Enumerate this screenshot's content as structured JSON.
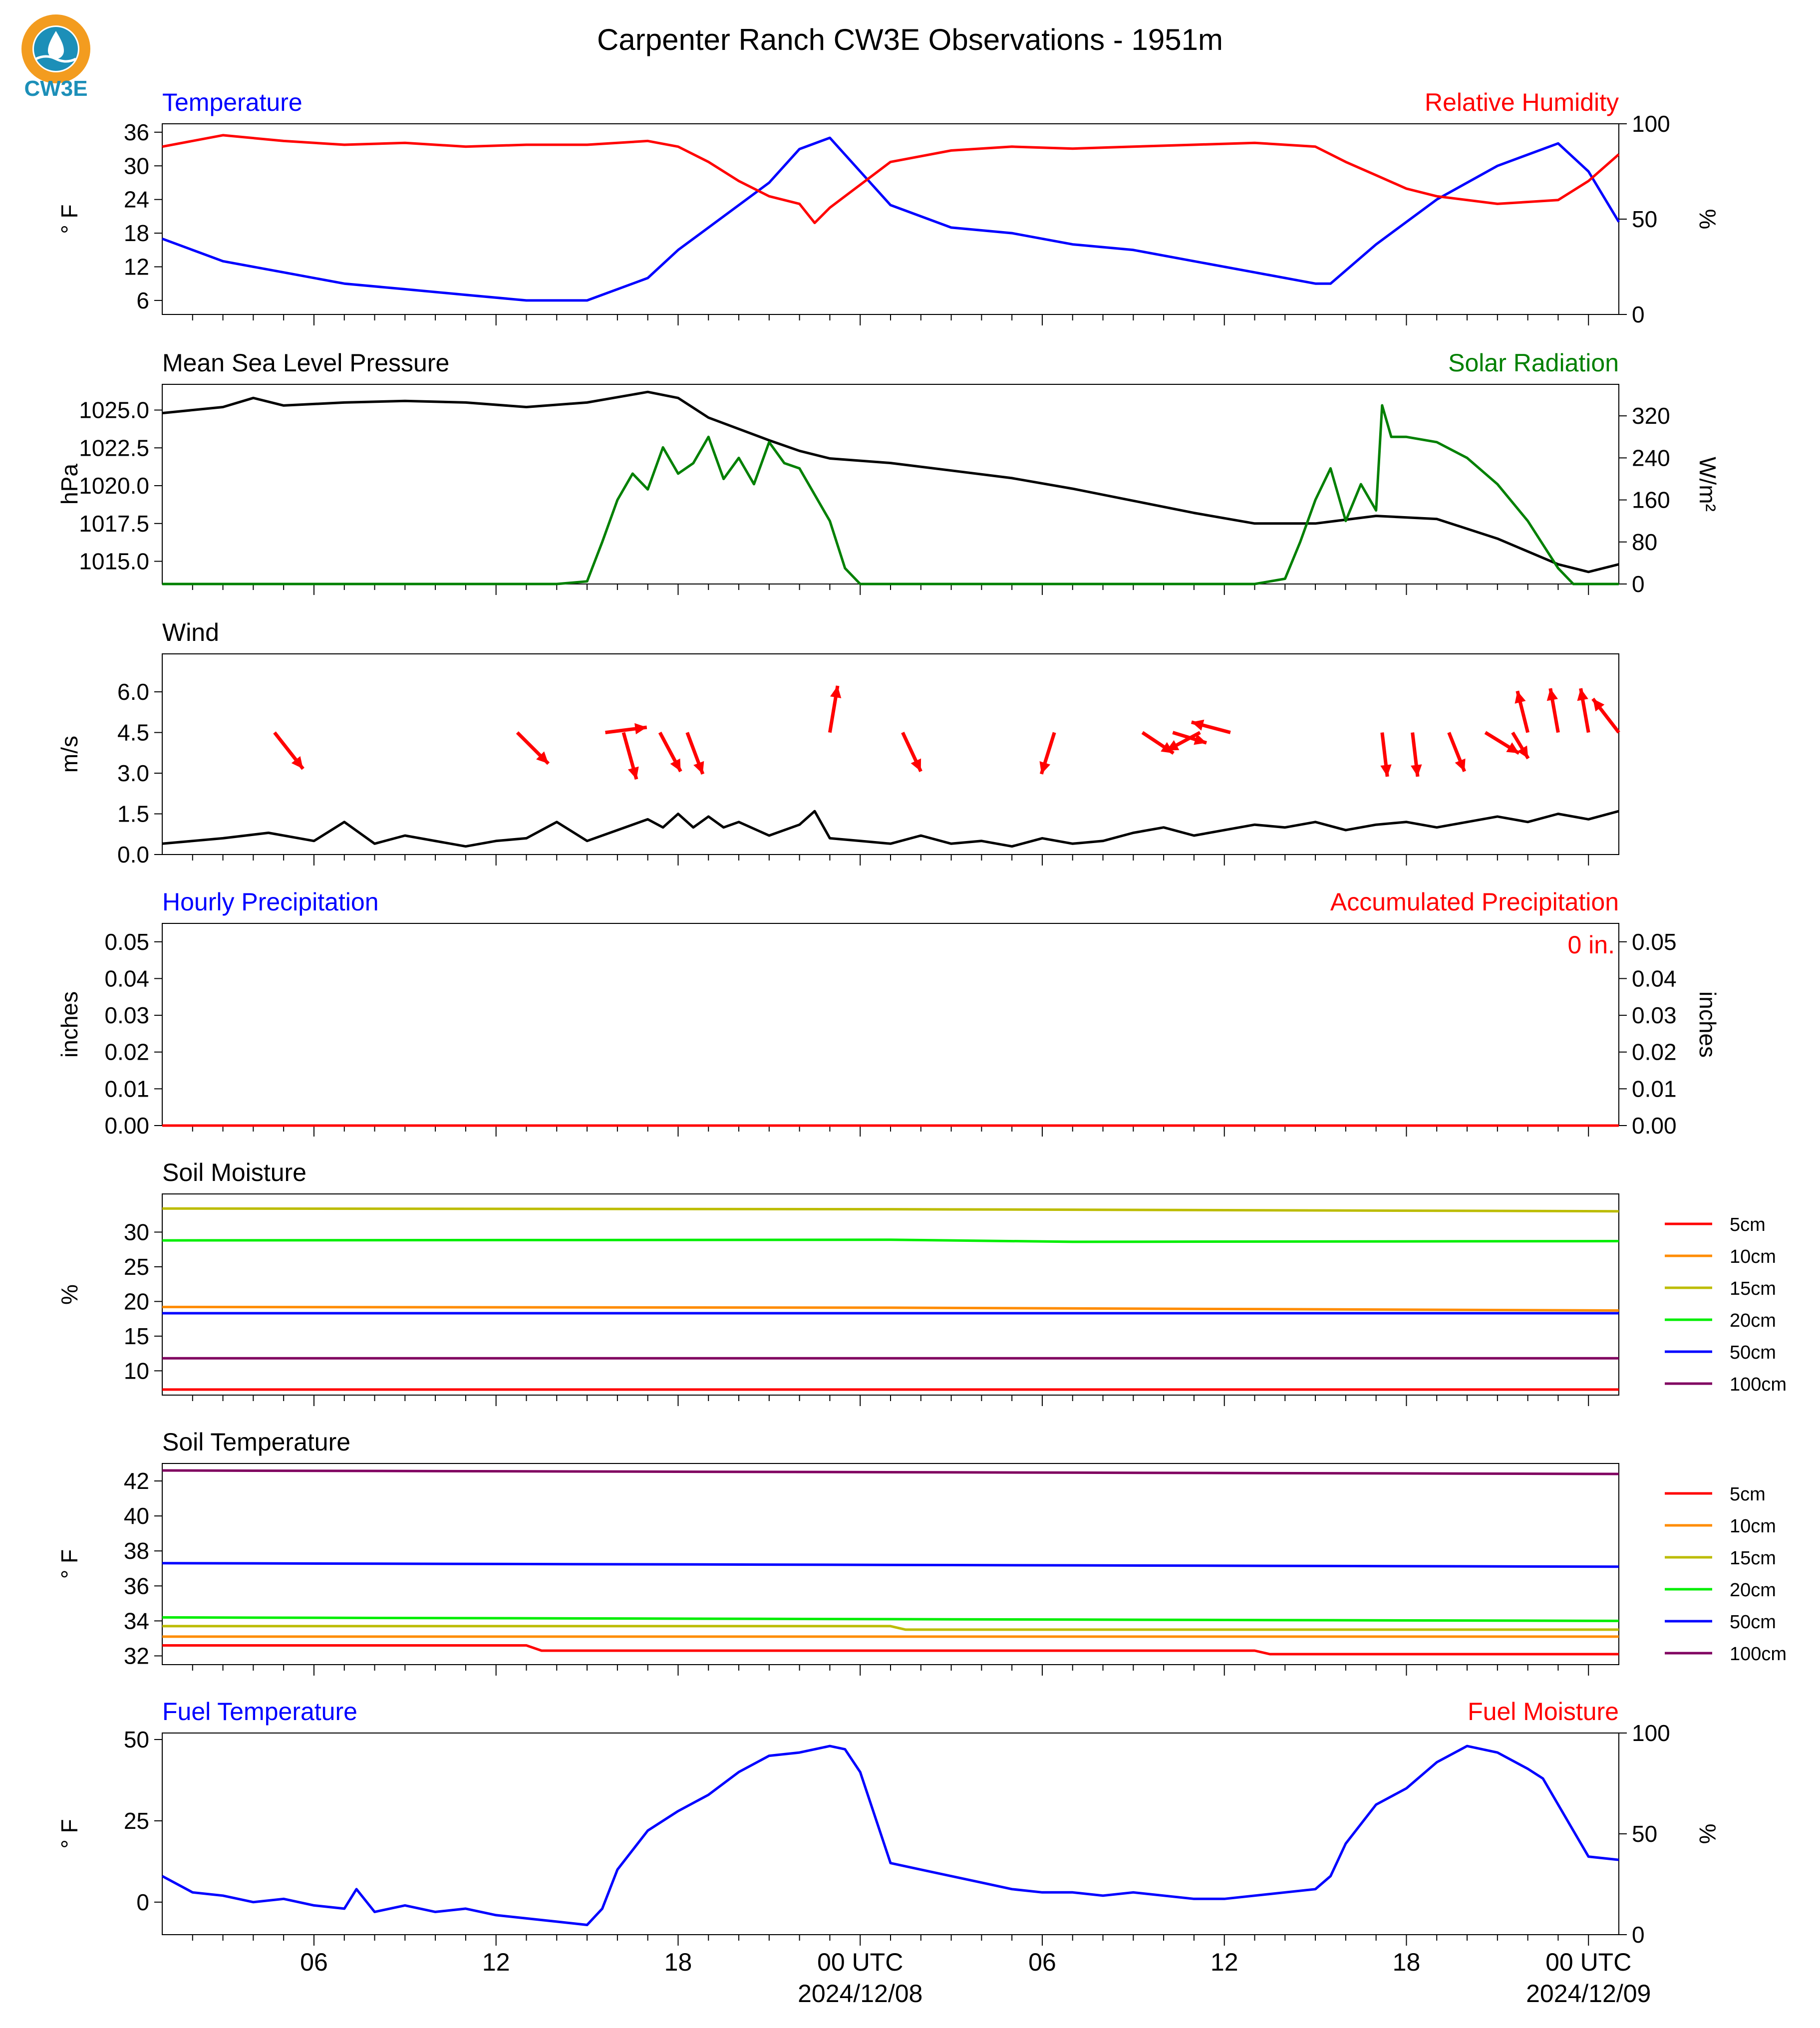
{
  "header": {
    "title": "Carpenter Ranch CW3E Observations - 1951m",
    "logo_text": "CW3E",
    "colors": {
      "logo_orange": "#f39c1f",
      "logo_blue": "#1c8fb8",
      "logo_text": "#1c8fb8"
    }
  },
  "time_axis": {
    "start": "2024-12-07 01 UTC",
    "end": "2024-12-09 01 UTC",
    "tick_labels": [
      "06",
      "12",
      "18",
      "00 UTC",
      "06",
      "12",
      "18",
      "00 UTC"
    ],
    "tick_hours": [
      5,
      11,
      17,
      23,
      29,
      35,
      41,
      47
    ],
    "date_labels": [
      "2024/12/08",
      "2024/12/09"
    ],
    "date_hours": [
      23,
      47
    ],
    "total_hours": 48
  },
  "chart_data": [
    {
      "type": "line",
      "id": "temp_rh",
      "left_title": "Temperature",
      "left_title_color": "#0000ff",
      "right_title": "Relative Humidity",
      "right_title_color": "#ff0000",
      "ylabel": "° F",
      "y2label": "%",
      "ylim": [
        3.5,
        37.5
      ],
      "yticks": [
        6,
        12,
        18,
        24,
        30,
        36
      ],
      "y2lim": [
        0,
        100
      ],
      "y2ticks": [
        0,
        50,
        100
      ],
      "series": [
        {
          "axis": "left",
          "color": "#0000ff",
          "x": [
            0,
            2,
            4,
            6,
            8,
            10,
            12,
            14,
            16,
            17,
            18,
            20,
            21,
            22,
            23,
            24,
            26,
            28,
            30,
            32,
            34,
            36,
            38,
            38.5,
            40,
            42,
            44,
            46,
            47,
            48
          ],
          "y": [
            17,
            13,
            11,
            9,
            8,
            7,
            6,
            6,
            10,
            15,
            19,
            27,
            33,
            35,
            29,
            23,
            19,
            18,
            16,
            15,
            13,
            11,
            9,
            9,
            16,
            24,
            30,
            34,
            29,
            20
          ]
        },
        {
          "axis": "right",
          "color": "#ff0000",
          "x": [
            0,
            2,
            4,
            6,
            8,
            10,
            12,
            14,
            16,
            17,
            18,
            19,
            20,
            21,
            21.5,
            22,
            23,
            24,
            26,
            28,
            30,
            32,
            34,
            36,
            38,
            39,
            40,
            41,
            42,
            44,
            46,
            47,
            48
          ],
          "y": [
            88,
            94,
            91,
            89,
            90,
            88,
            89,
            89,
            91,
            88,
            80,
            70,
            62,
            58,
            48,
            56,
            68,
            80,
            86,
            88,
            87,
            88,
            89,
            90,
            88,
            80,
            73,
            66,
            62,
            58,
            60,
            70,
            84
          ]
        }
      ]
    },
    {
      "type": "line",
      "id": "pressure_solar",
      "left_title": "Mean Sea Level Pressure",
      "left_title_color": "#000000",
      "right_title": "Solar Radiation",
      "right_title_color": "#008000",
      "ylabel": "hPa",
      "y2label": "W/m²",
      "ylim": [
        1013.5,
        1026.7
      ],
      "yticks": [
        1015.0,
        1017.5,
        1020.0,
        1022.5,
        1025.0
      ],
      "y2lim": [
        0,
        380
      ],
      "y2ticks": [
        0,
        80,
        160,
        240,
        320
      ],
      "series": [
        {
          "axis": "left",
          "color": "#000000",
          "x": [
            0,
            2,
            3,
            4,
            6,
            8,
            10,
            12,
            14,
            16,
            17,
            18,
            20,
            21,
            22,
            24,
            26,
            28,
            30,
            32,
            34,
            36,
            38,
            40,
            42,
            44,
            46,
            47,
            48
          ],
          "y": [
            1024.8,
            1025.2,
            1025.8,
            1025.3,
            1025.5,
            1025.6,
            1025.5,
            1025.2,
            1025.5,
            1026.2,
            1025.8,
            1024.5,
            1023.0,
            1022.3,
            1021.8,
            1021.5,
            1021.0,
            1020.5,
            1019.8,
            1019.0,
            1018.2,
            1017.5,
            1017.5,
            1018.0,
            1017.8,
            1016.5,
            1014.8,
            1014.3,
            1014.8
          ]
        },
        {
          "axis": "right",
          "color": "#008000",
          "x": [
            0,
            13,
            14,
            14.5,
            15,
            15.5,
            16,
            16.5,
            17,
            17.5,
            18,
            18.5,
            19,
            19.5,
            20,
            20.5,
            21,
            22,
            22.5,
            23,
            36,
            37,
            37.5,
            38,
            38.5,
            39,
            39.5,
            40,
            40.2,
            40.5,
            41,
            42,
            43,
            44,
            45,
            46,
            46.5,
            48
          ],
          "y": [
            0,
            0,
            5,
            80,
            160,
            210,
            180,
            260,
            210,
            230,
            280,
            200,
            240,
            190,
            270,
            230,
            220,
            120,
            30,
            0,
            0,
            10,
            80,
            160,
            220,
            120,
            190,
            140,
            340,
            280,
            280,
            270,
            240,
            190,
            120,
            30,
            0,
            0
          ]
        }
      ]
    },
    {
      "type": "line",
      "id": "wind",
      "left_title": "Wind",
      "left_title_color": "#000000",
      "ylabel": "m/s",
      "ylim": [
        0,
        7.4
      ],
      "yticks": [
        0.0,
        1.5,
        3.0,
        4.5,
        6.0
      ],
      "series": [
        {
          "axis": "left",
          "color": "#000000",
          "x": [
            0,
            2,
            3.5,
            5,
            6,
            7,
            8,
            10,
            11,
            12,
            13,
            14,
            15,
            16,
            16.5,
            17,
            17.5,
            18,
            18.5,
            19,
            20,
            21,
            21.5,
            22,
            23,
            24,
            25,
            26,
            27,
            28,
            29,
            30,
            31,
            32,
            33,
            34,
            35,
            36,
            37,
            38,
            39,
            40,
            41,
            42,
            43,
            44,
            45,
            46,
            47,
            48
          ],
          "y": [
            0.4,
            0.6,
            0.8,
            0.5,
            1.2,
            0.4,
            0.7,
            0.3,
            0.5,
            0.6,
            1.2,
            0.5,
            0.9,
            1.3,
            1.0,
            1.5,
            1.0,
            1.4,
            1.0,
            1.2,
            0.7,
            1.1,
            1.6,
            0.6,
            0.5,
            0.4,
            0.7,
            0.4,
            0.5,
            0.3,
            0.6,
            0.4,
            0.5,
            0.8,
            1.0,
            0.7,
            0.9,
            1.1,
            1.0,
            1.2,
            0.9,
            1.1,
            1.2,
            1.0,
            1.2,
            1.4,
            1.2,
            1.5,
            1.3,
            1.6
          ]
        }
      ],
      "arrows": [
        {
          "x": 3.7,
          "u": 1.1,
          "v": -1.4
        },
        {
          "x": 11.7,
          "u": 1.2,
          "v": -1.2
        },
        {
          "x": 14.6,
          "u": 1.6,
          "v": 0.2
        },
        {
          "x": 15.2,
          "u": 0.5,
          "v": -1.8
        },
        {
          "x": 16.4,
          "u": 0.8,
          "v": -1.5
        },
        {
          "x": 17.3,
          "u": 0.6,
          "v": -1.6
        },
        {
          "x": 22.0,
          "u": 0.3,
          "v": 1.8
        },
        {
          "x": 24.4,
          "u": 0.7,
          "v": -1.5
        },
        {
          "x": 29.4,
          "u": -0.5,
          "v": -1.6
        },
        {
          "x": 32.3,
          "u": 1.2,
          "v": -0.8
        },
        {
          "x": 33.3,
          "u": 1.3,
          "v": -0.4
        },
        {
          "x": 34.2,
          "u": -1.3,
          "v": -0.7
        },
        {
          "x": 35.2,
          "u": -1.5,
          "v": 0.4
        },
        {
          "x": 40.2,
          "u": 0.2,
          "v": -1.7
        },
        {
          "x": 41.2,
          "u": 0.2,
          "v": -1.7
        },
        {
          "x": 42.4,
          "u": 0.6,
          "v": -1.5
        },
        {
          "x": 43.6,
          "u": 1.3,
          "v": -0.8
        },
        {
          "x": 44.5,
          "u": 0.6,
          "v": -1.0
        },
        {
          "x": 45.0,
          "u": -0.4,
          "v": 1.6
        },
        {
          "x": 46.0,
          "u": -0.3,
          "v": 1.7
        },
        {
          "x": 47.0,
          "u": -0.3,
          "v": 1.7
        },
        {
          "x": 48.0,
          "u": -1.0,
          "v": 1.3
        }
      ]
    },
    {
      "type": "line",
      "id": "precip",
      "left_title": "Hourly Precipitation",
      "left_title_color": "#0000ff",
      "right_title": "Accumulated Precipitation",
      "right_title_color": "#ff0000",
      "ylabel": "inches",
      "y2label": "inches",
      "ylim": [
        0,
        0.055
      ],
      "yticks": [
        0.0,
        0.01,
        0.02,
        0.03,
        0.04,
        0.05
      ],
      "y2lim": [
        0,
        0.055
      ],
      "y2ticks": [
        0.0,
        0.01,
        0.02,
        0.03,
        0.04,
        0.05
      ],
      "annotation": "0 in.",
      "annotation_color": "#ff0000",
      "series": [
        {
          "axis": "left",
          "color": "#ff0000",
          "x": [
            0,
            48
          ],
          "y": [
            0,
            0
          ]
        }
      ]
    },
    {
      "type": "line",
      "id": "soil_moisture",
      "left_title": "Soil Moisture",
      "left_title_color": "#000000",
      "ylabel": "%",
      "ylim": [
        6.5,
        35.5
      ],
      "yticks": [
        10,
        15,
        20,
        25,
        30
      ],
      "legend": "right",
      "series": [
        {
          "name": "5cm",
          "color": "#ff0000",
          "x": [
            0,
            48
          ],
          "y": [
            7.3,
            7.3
          ]
        },
        {
          "name": "10cm",
          "color": "#ff8c00",
          "x": [
            0,
            24,
            48
          ],
          "y": [
            19.2,
            19.1,
            18.7
          ]
        },
        {
          "name": "15cm",
          "color": "#bcbc00",
          "x": [
            0,
            24,
            48
          ],
          "y": [
            33.4,
            33.3,
            33.0
          ]
        },
        {
          "name": "20cm",
          "color": "#00ee00",
          "x": [
            0,
            24,
            30,
            48
          ],
          "y": [
            28.8,
            28.9,
            28.6,
            28.7
          ]
        },
        {
          "name": "50cm",
          "color": "#0000ff",
          "x": [
            0,
            48
          ],
          "y": [
            18.3,
            18.3
          ]
        },
        {
          "name": "100cm",
          "color": "#800060",
          "x": [
            0,
            48
          ],
          "y": [
            11.8,
            11.8
          ]
        }
      ]
    },
    {
      "type": "line",
      "id": "soil_temperature",
      "left_title": "Soil Temperature",
      "left_title_color": "#000000",
      "ylabel": "° F",
      "ylim": [
        31.5,
        43.0
      ],
      "yticks": [
        32,
        34,
        36,
        38,
        40,
        42
      ],
      "legend": "right",
      "series": [
        {
          "name": "5cm",
          "color": "#ff0000",
          "x": [
            0,
            12,
            12.5,
            36,
            36.5,
            48
          ],
          "y": [
            32.6,
            32.6,
            32.3,
            32.3,
            32.1,
            32.1
          ]
        },
        {
          "name": "10cm",
          "color": "#ff8c00",
          "x": [
            0,
            48
          ],
          "y": [
            33.1,
            33.1
          ]
        },
        {
          "name": "15cm",
          "color": "#bcbc00",
          "x": [
            0,
            24,
            24.5,
            48
          ],
          "y": [
            33.7,
            33.7,
            33.5,
            33.5
          ]
        },
        {
          "name": "20cm",
          "color": "#00ee00",
          "x": [
            0,
            48
          ],
          "y": [
            34.2,
            34.0
          ]
        },
        {
          "name": "50cm",
          "color": "#0000ff",
          "x": [
            0,
            48
          ],
          "y": [
            37.3,
            37.1
          ]
        },
        {
          "name": "100cm",
          "color": "#800060",
          "x": [
            0,
            48
          ],
          "y": [
            42.6,
            42.4
          ]
        }
      ]
    },
    {
      "type": "line",
      "id": "fuel",
      "left_title": "Fuel Temperature",
      "left_title_color": "#0000ff",
      "right_title": "Fuel Moisture",
      "right_title_color": "#ff0000",
      "ylabel": "° F",
      "y2label": "%",
      "ylim": [
        -10,
        52
      ],
      "yticks": [
        0,
        25,
        50
      ],
      "y2lim": [
        0,
        100
      ],
      "y2ticks": [
        0,
        50,
        100
      ],
      "series": [
        {
          "axis": "left",
          "color": "#0000ff",
          "x": [
            0,
            1,
            2,
            3,
            4,
            5,
            6,
            6.4,
            7,
            8,
            9,
            10,
            11,
            12,
            13,
            14,
            14.5,
            15,
            16,
            17,
            18,
            19,
            20,
            21,
            22,
            22.5,
            23,
            24,
            25,
            26,
            27,
            28,
            29,
            30,
            31,
            32,
            33,
            34,
            35,
            36,
            37,
            38,
            38.5,
            39,
            40,
            41,
            42,
            43,
            44,
            45,
            45.5,
            46,
            47,
            48
          ],
          "y": [
            8,
            3,
            2,
            0,
            1,
            -1,
            -2,
            4,
            -3,
            -1,
            -3,
            -2,
            -4,
            -5,
            -6,
            -7,
            -2,
            10,
            22,
            28,
            33,
            40,
            45,
            46,
            48,
            47,
            40,
            12,
            10,
            8,
            6,
            4,
            3,
            3,
            2,
            3,
            2,
            1,
            1,
            2,
            3,
            4,
            8,
            18,
            30,
            35,
            43,
            48,
            46,
            41,
            38,
            30,
            14,
            13
          ]
        }
      ]
    }
  ]
}
